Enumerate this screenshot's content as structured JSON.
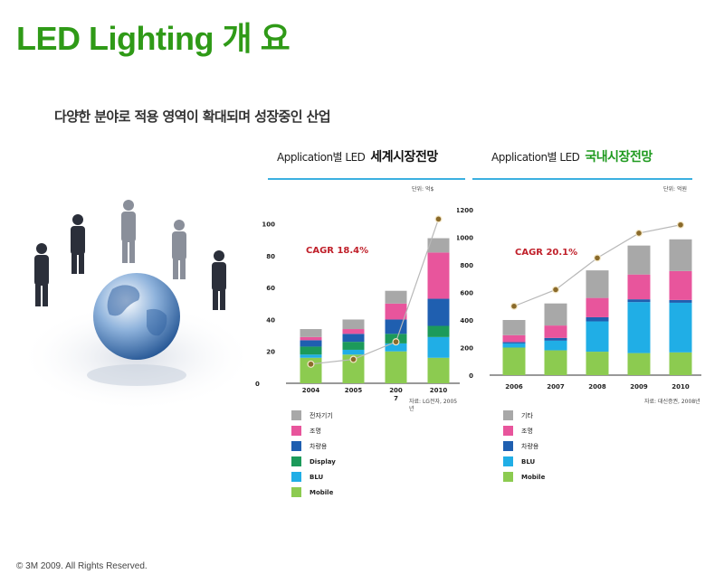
{
  "title": "LED Lighting 개 요",
  "subtitle": "다양한 분야로 적용 영역이 확대되며 성장중인 산업",
  "footer": "© 3M 2009.  All Rights Reserved.",
  "colors": {
    "title": "#2f9a17",
    "underline": "#3bb0e0",
    "cagr": "#c0202a",
    "trend": "#b8b8b8",
    "marker": "#8a6a2a"
  },
  "charts": {
    "world": {
      "title_prefix": "Application별 LED",
      "title_bold": "세계시장전망",
      "unit": "단위: 억$",
      "cagr": "CAGR 18.4%",
      "source": [
        "자료: LG전자, 2005",
        "년"
      ]
    },
    "domestic": {
      "title_prefix": "Application별 LED",
      "title_bold": "국내시장전망",
      "unit": "단위: 억원",
      "cagr": "CAGR 20.1%",
      "source": [
        "자료: 대신증권, 2008년"
      ]
    }
  },
  "legends": {
    "world": [
      {
        "label": "전자기기",
        "color": "#a8a8a8",
        "bold": false
      },
      {
        "label": "조명",
        "color": "#e8559c",
        "bold": false
      },
      {
        "label": "차량용",
        "color": "#1f5fb0",
        "bold": false
      },
      {
        "label": "Display",
        "color": "#1c9a5a",
        "bold": true
      },
      {
        "label": "BLU",
        "color": "#20aee6",
        "bold": true
      },
      {
        "label": "Mobile",
        "color": "#8ccb50",
        "bold": true
      }
    ],
    "domestic": [
      {
        "label": "기타",
        "color": "#a8a8a8",
        "bold": false
      },
      {
        "label": "조명",
        "color": "#e8559c",
        "bold": false
      },
      {
        "label": "차량용",
        "color": "#1f5fb0",
        "bold": false
      },
      {
        "label": "BLU",
        "color": "#20aee6",
        "bold": true
      },
      {
        "label": "Mobile",
        "color": "#8ccb50",
        "bold": true
      }
    ]
  },
  "chart_data": [
    {
      "type": "bar",
      "stacked": true,
      "categories": [
        "2004",
        "2005",
        "2007",
        "2010"
      ],
      "category_labels": [
        "2004",
        "2005",
        "200\n7",
        "2010"
      ],
      "y_ticks": [
        0,
        20,
        40,
        60,
        80,
        100
      ],
      "y_tick_labels": [
        "0",
        "20",
        "40",
        "60",
        "80",
        "100"
      ],
      "ylim": [
        0,
        110
      ],
      "series": [
        {
          "name": "Mobile",
          "color": "#8ccb50",
          "values": [
            16,
            18,
            20,
            16
          ]
        },
        {
          "name": "BLU",
          "color": "#20aee6",
          "values": [
            2,
            3,
            5,
            13
          ]
        },
        {
          "name": "Display",
          "color": "#1c9a5a",
          "values": [
            5,
            5,
            6,
            7
          ]
        },
        {
          "name": "차량용",
          "color": "#1f5fb0",
          "values": [
            4,
            5,
            9,
            17
          ]
        },
        {
          "name": "조명",
          "color": "#e8559c",
          "values": [
            2,
            3,
            10,
            29
          ]
        },
        {
          "name": "전자기기",
          "color": "#a8a8a8",
          "values": [
            5,
            6,
            8,
            9
          ]
        }
      ],
      "trend": [
        12,
        15,
        26,
        103
      ]
    },
    {
      "type": "bar",
      "stacked": true,
      "categories": [
        "2006",
        "2007",
        "2008",
        "2009",
        "2010"
      ],
      "category_labels": [
        "2006",
        "2007",
        "2008",
        "2009",
        "2010"
      ],
      "y_ticks": [
        0,
        200,
        400,
        600,
        800,
        1000,
        1200
      ],
      "y_tick_labels": [
        "0",
        "200",
        "400",
        "600",
        "800",
        "1000",
        "1200"
      ],
      "ylim": [
        0,
        1200
      ],
      "series": [
        {
          "name": "Mobile",
          "color": "#8ccb50",
          "values": [
            200,
            180,
            170,
            160,
            165
          ]
        },
        {
          "name": "BLU",
          "color": "#20aee6",
          "values": [
            30,
            70,
            220,
            370,
            360
          ]
        },
        {
          "name": "차량용",
          "color": "#1f5fb0",
          "values": [
            10,
            20,
            30,
            20,
            20
          ]
        },
        {
          "name": "조명",
          "color": "#e8559c",
          "values": [
            50,
            90,
            140,
            180,
            210
          ]
        },
        {
          "name": "기타",
          "color": "#a8a8a8",
          "values": [
            110,
            160,
            200,
            210,
            230
          ]
        }
      ],
      "trend": [
        500,
        620,
        850,
        1030,
        1090
      ]
    }
  ]
}
